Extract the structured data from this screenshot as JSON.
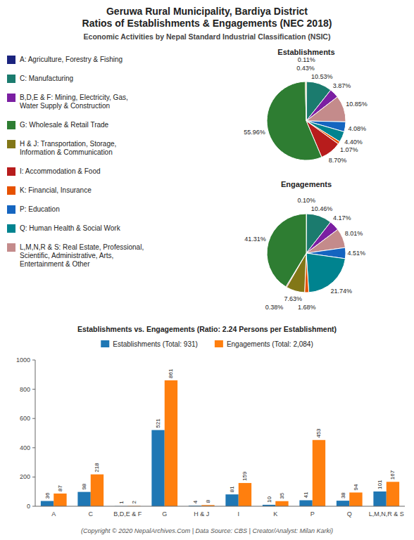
{
  "title": "Geruwa Rural Municipality, Bardiya District\nRatios of Establishments & Engagements (NEC 2018)",
  "subtitle": "Economic Activities by Nepal Standard Industrial Classification (NSIC)",
  "annotations": [
    "(Copyright © 2020 NepalArchives.Com | Data Source: CBS | Creator/Analyst: Milan Karki)"
  ],
  "chart_data": [
    {
      "type": "legend",
      "categories": [
        "A: Agriculture, Forestry & Fishing",
        "C: Manufacturing",
        "B,D,E & F: Mining, Electricity, Gas,\nWater Supply & Construction",
        "G: Wholesale & Retail Trade",
        "H & J: Transportation, Storage,\nInformation & Communication",
        "I: Accommodation & Food",
        "K: Financial, Insurance",
        "P: Education",
        "Q: Human Health & Social Work",
        "L,M,N,R & S: Real Estate, Professional,\nScientific, Administrative, Arts,\nEntertainment & Other"
      ],
      "colors": [
        "#1a237e",
        "#1b7b6e",
        "#7b1fa2",
        "#2e7d32",
        "#827717",
        "#b71c1c",
        "#e65100",
        "#1565c0",
        "#00838f",
        "#c48b8b"
      ]
    },
    {
      "type": "pie",
      "title": "Establishments",
      "values": [
        0.11,
        10.53,
        3.87,
        10.85,
        4.08,
        4.4,
        1.07,
        8.7,
        55.96,
        0.43
      ],
      "value_labels": [
        "0.11%",
        "10.53%",
        "3.87%",
        "10.85%",
        "4.08%",
        "4.40%",
        "1.07%",
        "8.70%",
        "55.96%",
        "0.43%"
      ],
      "colors": [
        "#1a237e",
        "#1b7b6e",
        "#7b1fa2",
        "#c48b8b",
        "#1565c0",
        "#00838f",
        "#e65100",
        "#b71c1c",
        "#2e7d32",
        "#827717"
      ],
      "data_labels": true
    },
    {
      "type": "pie",
      "title": "Engagements",
      "values": [
        0.1,
        10.46,
        4.17,
        8.01,
        4.51,
        21.74,
        1.68,
        7.63,
        0.38,
        41.31
      ],
      "value_labels": [
        "0.10%",
        "10.46%",
        "4.17%",
        "8.01%",
        "4.51%",
        "21.74%",
        "1.68%",
        "7.63%",
        "0.38%",
        "41.31%"
      ],
      "colors": [
        "#1a237e",
        "#1b7b6e",
        "#7b1fa2",
        "#c48b8b",
        "#1565c0",
        "#00838f",
        "#e65100",
        "#827717",
        "#b71c1c",
        "#2e7d32"
      ],
      "data_labels": true
    },
    {
      "type": "bar",
      "title": "Establishments vs. Engagements (Ratio: 2.24 Persons per Establishment)",
      "categories": [
        "A",
        "C",
        "B,D,E & F",
        "G",
        "H & J",
        "I",
        "K",
        "P",
        "Q",
        "L,M,N,R & S"
      ],
      "series": [
        {
          "name": "Establishments (Total: 931)",
          "color": "#1f77b4",
          "values": [
            36,
            98,
            1,
            521,
            4,
            81,
            10,
            41,
            38,
            101
          ]
        },
        {
          "name": "Engagements (Total: 2,084)",
          "color": "#ff7f0e",
          "values": [
            87,
            218,
            2,
            861,
            8,
            159,
            35,
            453,
            94,
            167
          ]
        }
      ],
      "ylim": [
        0,
        1000
      ],
      "yticks": [
        0,
        200,
        400,
        600,
        800,
        1000
      ],
      "grid": false,
      "legend": "top",
      "data_labels": true
    }
  ]
}
